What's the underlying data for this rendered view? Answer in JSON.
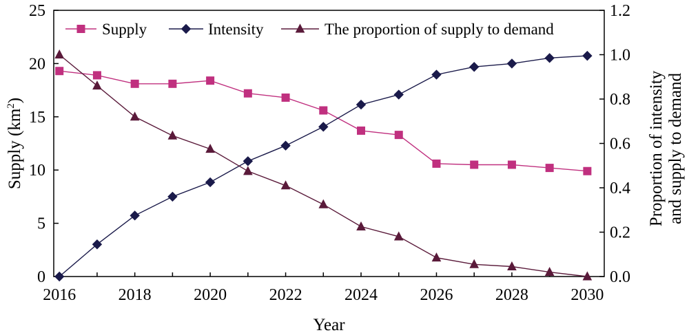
{
  "chart_data": {
    "type": "line",
    "x": [
      2016,
      2017,
      2018,
      2019,
      2020,
      2021,
      2022,
      2023,
      2024,
      2025,
      2026,
      2027,
      2028,
      2029,
      2030
    ],
    "x_tick_labels": [
      "2016",
      "2018",
      "2020",
      "2022",
      "2024",
      "2026",
      "2028",
      "2030"
    ],
    "x_ticks": [
      2016,
      2018,
      2020,
      2022,
      2024,
      2026,
      2028,
      2030
    ],
    "xlim": [
      2015.85,
      2030.45
    ],
    "xlabel": "Year",
    "ylabel_left": {
      "main": "Supply (km",
      "sup": "2",
      "end": ")"
    },
    "ylabel_right": [
      "Proportion of intensity",
      "and supply to demand"
    ],
    "ylim_left": [
      0,
      25
    ],
    "ylim_right": [
      0,
      1.2
    ],
    "y_ticks_left": [
      "0",
      "5",
      "10",
      "15",
      "20",
      "25"
    ],
    "y_ticks_right": [
      "0.0",
      "0.2",
      "0.4",
      "0.6",
      "0.8",
      "1.0",
      "1.2"
    ],
    "legend_position": "top",
    "grid": false,
    "series": [
      {
        "name": "Supply",
        "axis": "left",
        "marker": "square",
        "color": "#c0307f",
        "values": [
          19.3,
          18.9,
          18.1,
          18.1,
          18.4,
          17.2,
          16.8,
          15.6,
          13.7,
          13.3,
          10.6,
          10.5,
          10.5,
          10.2,
          9.9
        ]
      },
      {
        "name": "Intensity",
        "axis": "right",
        "marker": "diamond",
        "color": "#1a1a4a",
        "values": [
          0.0,
          0.145,
          0.275,
          0.36,
          0.425,
          0.52,
          0.59,
          0.675,
          0.775,
          0.82,
          0.91,
          0.945,
          0.96,
          0.985,
          0.995
        ]
      },
      {
        "name": "The proportion of supply to demand",
        "axis": "right",
        "marker": "triangle",
        "color": "#5a1a3a",
        "values": [
          1.0,
          0.86,
          0.72,
          0.635,
          0.575,
          0.475,
          0.41,
          0.325,
          0.225,
          0.18,
          0.085,
          0.055,
          0.045,
          0.02,
          0.0
        ]
      }
    ]
  }
}
